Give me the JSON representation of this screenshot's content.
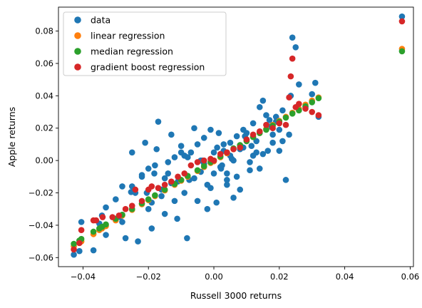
{
  "chart_data": {
    "type": "scatter",
    "title": "",
    "xlabel": "Russell 3000 returns",
    "ylabel": "Apple returns",
    "xlim": [
      -0.0475,
      0.061
    ],
    "ylim": [
      -0.0656,
      0.0948
    ],
    "xticks": [
      -0.04,
      -0.02,
      0.0,
      0.02,
      0.04,
      0.06
    ],
    "xtick_labels": [
      "−0.04",
      "−0.02",
      "0.00",
      "0.02",
      "0.04",
      "0.06"
    ],
    "yticks": [
      -0.06,
      -0.04,
      -0.02,
      0.0,
      0.02,
      0.04,
      0.06,
      0.08
    ],
    "ytick_labels": [
      "−0.06",
      "−0.04",
      "−0.02",
      "0.00",
      "0.02",
      "0.04",
      "0.06",
      "0.08"
    ],
    "grid": false,
    "legend_position": "top-left",
    "series": [
      {
        "name": "data",
        "color": "#1f77b4",
        "x": [
          -0.0428,
          -0.0411,
          -0.0405,
          -0.0368,
          -0.035,
          -0.0342,
          -0.0338,
          -0.033,
          -0.03,
          -0.0286,
          -0.028,
          -0.027,
          -0.0253,
          -0.025,
          -0.0232,
          -0.022,
          -0.021,
          -0.0205,
          -0.02,
          -0.019,
          -0.0182,
          -0.0175,
          -0.017,
          -0.016,
          -0.015,
          -0.014,
          -0.013,
          -0.012,
          -0.0112,
          -0.01,
          -0.009,
          -0.0082,
          -0.0075,
          -0.006,
          -0.005,
          -0.004,
          -0.003,
          -0.002,
          -0.001,
          0.0,
          0.0008,
          0.0015,
          0.0022,
          0.003,
          0.004,
          0.005,
          0.006,
          0.007,
          0.008,
          0.009,
          0.01,
          0.011,
          0.012,
          0.013,
          0.014,
          0.015,
          0.016,
          0.017,
          0.018,
          0.019,
          0.02,
          0.021,
          0.022,
          0.023,
          0.0235,
          0.024,
          0.025,
          0.026,
          0.028,
          0.03,
          0.031,
          0.032,
          0.0575,
          -0.025,
          -0.018,
          -0.012,
          -0.006,
          0.0,
          0.006,
          0.012,
          0.018,
          -0.028,
          -0.022,
          -0.015,
          -0.009,
          -0.003,
          0.003,
          0.009,
          0.015,
          0.021,
          -0.02,
          -0.013,
          -0.007,
          -0.001,
          0.005,
          0.011,
          0.017,
          -0.016,
          -0.01,
          -0.004,
          0.002,
          0.008,
          0.014,
          0.02,
          -0.033,
          -0.024,
          -0.011,
          0.004,
          0.01,
          0.019,
          -0.019,
          -0.008,
          0.001,
          0.007,
          0.013,
          -0.014,
          -0.005,
          0.004,
          0.0115,
          -0.002,
          0.0055,
          0.0025,
          -0.0035,
          0.0095,
          0.0165
        ],
        "y": [
          -0.0582,
          -0.056,
          -0.038,
          -0.0555,
          -0.039,
          -0.034,
          -0.041,
          -0.046,
          -0.024,
          -0.035,
          -0.038,
          -0.048,
          -0.0195,
          -0.016,
          -0.05,
          -0.01,
          0.011,
          -0.02,
          -0.03,
          -0.042,
          -0.008,
          0.007,
          0.024,
          -0.018,
          -0.033,
          -0.008,
          0.016,
          -0.025,
          -0.036,
          0.005,
          -0.02,
          -0.048,
          -0.012,
          0.02,
          -0.025,
          -0.007,
          0.014,
          -0.03,
          0.019,
          0.005,
          -0.026,
          0.017,
          -0.005,
          0.01,
          -0.015,
          0.011,
          -0.023,
          0.015,
          -0.018,
          0.019,
          0.017,
          -0.001,
          0.023,
          0.012,
          0.033,
          0.037,
          0.028,
          0.025,
          0.016,
          0.027,
          0.019,
          0.031,
          -0.012,
          0.016,
          0.04,
          0.076,
          0.07,
          0.047,
          0.033,
          0.041,
          0.048,
          0.027,
          0.089,
          0.005,
          -0.003,
          0.002,
          -0.011,
          -0.008,
          0.0,
          0.003,
          0.011,
          -0.016,
          -0.009,
          -0.011,
          0.003,
          -0.002,
          0.006,
          0.008,
          0.004,
          0.012,
          -0.005,
          -0.014,
          0.005,
          -0.017,
          0.003,
          -0.006,
          0.021,
          -0.022,
          0.009,
          0.0,
          -0.004,
          0.007,
          -0.005,
          0.006,
          -0.029,
          -0.02,
          -0.013,
          -0.008,
          0.013,
          0.024,
          -0.026,
          0.002,
          0.008,
          -0.01,
          0.005,
          -0.001,
          0.01,
          -0.012,
          0.009,
          -0.015,
          0.001,
          -0.003,
          0.0,
          0.015,
          0.006
        ]
      },
      {
        "name": "linear regression",
        "color": "#ff7f0e",
        "x": [
          -0.0428,
          -0.0411,
          -0.0405,
          -0.0368,
          -0.035,
          -0.0342,
          -0.033,
          -0.03,
          -0.028,
          -0.025,
          -0.022,
          -0.02,
          -0.018,
          -0.015,
          -0.012,
          -0.01,
          -0.008,
          -0.005,
          -0.003,
          -0.001,
          0.0,
          0.002,
          0.004,
          0.006,
          0.008,
          0.01,
          0.012,
          0.014,
          0.016,
          0.018,
          0.02,
          0.022,
          0.024,
          0.026,
          0.028,
          0.03,
          0.032,
          0.0575
        ],
        "y": [
          -0.053,
          -0.051,
          -0.05,
          -0.0455,
          -0.043,
          -0.042,
          -0.0405,
          -0.037,
          -0.034,
          -0.0305,
          -0.027,
          -0.0245,
          -0.022,
          -0.0185,
          -0.015,
          -0.0125,
          -0.01,
          -0.0065,
          -0.004,
          -0.0015,
          -0.0005,
          0.002,
          0.0045,
          0.007,
          0.0095,
          0.012,
          0.0145,
          0.017,
          0.0195,
          0.022,
          0.0245,
          0.027,
          0.0295,
          0.032,
          0.0345,
          0.037,
          0.039,
          0.069
        ]
      },
      {
        "name": "median regression",
        "color": "#2ca02c",
        "x": [
          -0.0428,
          -0.0411,
          -0.0405,
          -0.0368,
          -0.035,
          -0.0342,
          -0.033,
          -0.03,
          -0.028,
          -0.025,
          -0.022,
          -0.02,
          -0.018,
          -0.015,
          -0.012,
          -0.01,
          -0.008,
          -0.005,
          -0.003,
          -0.001,
          0.0,
          0.002,
          0.004,
          0.006,
          0.008,
          0.01,
          0.012,
          0.014,
          0.016,
          0.018,
          0.02,
          0.022,
          0.024,
          0.026,
          0.028,
          0.03,
          0.032,
          0.0575
        ],
        "y": [
          -0.0515,
          -0.0495,
          -0.0485,
          -0.044,
          -0.042,
          -0.041,
          -0.0395,
          -0.036,
          -0.0335,
          -0.03,
          -0.0265,
          -0.024,
          -0.0215,
          -0.018,
          -0.0145,
          -0.012,
          -0.0095,
          -0.006,
          -0.0035,
          -0.001,
          0.0,
          0.0025,
          0.005,
          0.0075,
          0.0095,
          0.012,
          0.0145,
          0.017,
          0.019,
          0.0215,
          0.024,
          0.0265,
          0.029,
          0.031,
          0.0335,
          0.036,
          0.0385,
          0.0675
        ]
      },
      {
        "name": "gradient boost regression",
        "color": "#d62728",
        "x": [
          -0.0428,
          -0.0411,
          -0.0405,
          -0.0368,
          -0.036,
          -0.034,
          -0.031,
          -0.029,
          -0.027,
          -0.025,
          -0.024,
          -0.022,
          -0.02,
          -0.019,
          -0.017,
          -0.015,
          -0.013,
          -0.011,
          -0.009,
          -0.007,
          -0.005,
          -0.003,
          -0.001,
          0.0,
          0.002,
          0.004,
          0.006,
          0.008,
          0.01,
          0.012,
          0.014,
          0.016,
          0.018,
          0.02,
          0.022,
          0.023,
          0.0235,
          0.024,
          0.025,
          0.026,
          0.028,
          0.03,
          0.032,
          0.0575
        ],
        "y": [
          -0.055,
          -0.051,
          -0.043,
          -0.037,
          -0.037,
          -0.035,
          -0.035,
          -0.034,
          -0.03,
          -0.028,
          -0.018,
          -0.025,
          -0.018,
          -0.016,
          -0.017,
          -0.015,
          -0.013,
          -0.01,
          -0.008,
          -0.003,
          -0.001,
          0.0,
          0.001,
          0.0,
          0.004,
          0.005,
          0.007,
          0.008,
          0.013,
          0.016,
          0.018,
          0.022,
          0.02,
          0.023,
          0.022,
          0.039,
          0.052,
          0.063,
          0.033,
          0.035,
          0.032,
          0.03,
          0.028,
          0.086
        ]
      }
    ]
  }
}
